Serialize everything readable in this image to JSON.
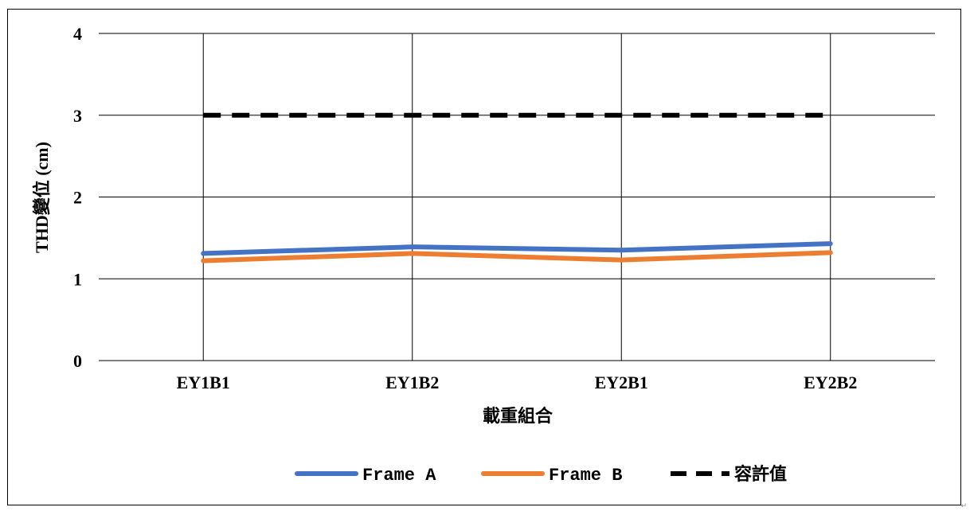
{
  "chart_data": {
    "type": "line",
    "title": "",
    "xlabel": "載重組合",
    "ylabel": "THD變位 (cm)",
    "categories": [
      "EY1B1",
      "EY1B2",
      "EY2B1",
      "EY2B2"
    ],
    "ylim": [
      0,
      4
    ],
    "yticks": [
      0,
      1,
      2,
      3,
      4
    ],
    "grid": true,
    "legend_position": "bottom",
    "series": [
      {
        "name": "Frame A",
        "values": [
          1.31,
          1.39,
          1.35,
          1.43
        ],
        "color": "#4472C4",
        "dash": "solid"
      },
      {
        "name": "Frame B",
        "values": [
          1.22,
          1.31,
          1.23,
          1.32
        ],
        "color": "#ED7D31",
        "dash": "solid"
      },
      {
        "name": "容許值",
        "values": [
          3,
          3,
          3,
          3
        ],
        "color": "#000000",
        "dash": "dashed"
      }
    ]
  }
}
